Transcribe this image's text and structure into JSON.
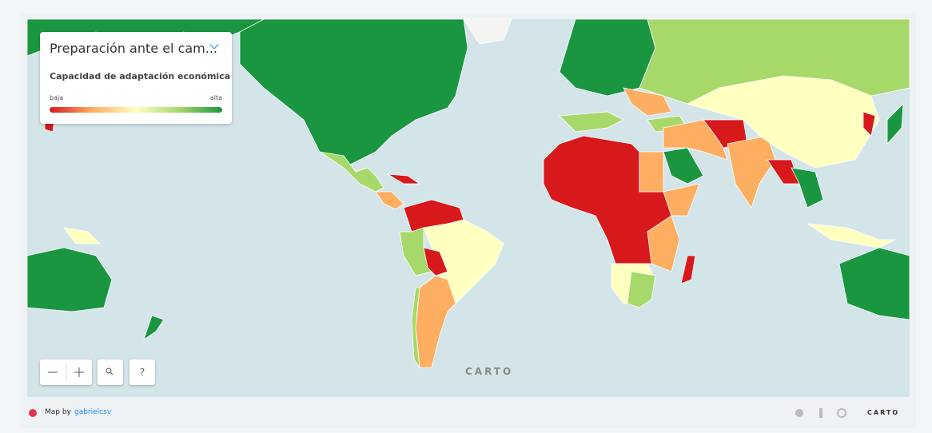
{
  "legend": {
    "title": "Preparación ante el cam...",
    "subtitle": "Capacidad de adaptación económica",
    "low": "baja",
    "high": "alta"
  },
  "controls": {
    "help": "?"
  },
  "watermark": "CARTO",
  "footer": {
    "credit": "Map by",
    "author": "gabrielcsv",
    "brand": "CARTO"
  }
}
